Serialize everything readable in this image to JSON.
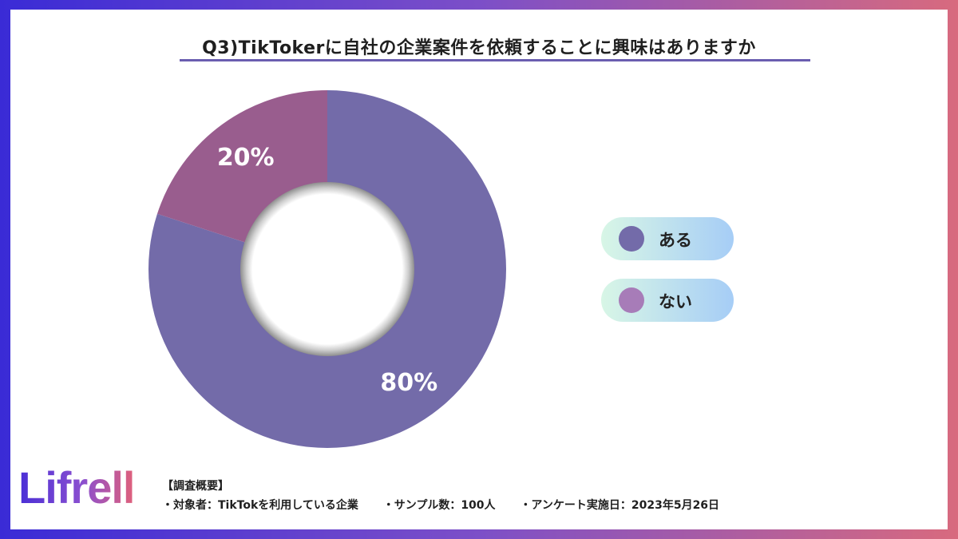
{
  "title": "Q3)TikTokerに自社の企業案件を依頼することに興味はありますか",
  "chart_data": {
    "type": "pie",
    "donut": true,
    "title": "Q3)TikTokerに自社の企業案件を依頼することに興味はありますか",
    "categories": [
      "ある",
      "ない"
    ],
    "values": [
      80,
      20
    ],
    "labels": [
      "80%",
      "20%"
    ],
    "colors": [
      "#736ba9",
      "#995d8e"
    ],
    "legend_position": "right"
  },
  "legend": {
    "items": [
      {
        "label": "ある",
        "color": "#736ba9"
      },
      {
        "label": "ない",
        "color": "#a77cb8"
      }
    ]
  },
  "logo": {
    "text": "Lifrell"
  },
  "survey": {
    "heading": "【調査概要】",
    "target": "・対象者：TikTokを利用している企業",
    "sample": "・サンプル数：100人",
    "date": "・アンケート実施日：2023年5月26日"
  }
}
